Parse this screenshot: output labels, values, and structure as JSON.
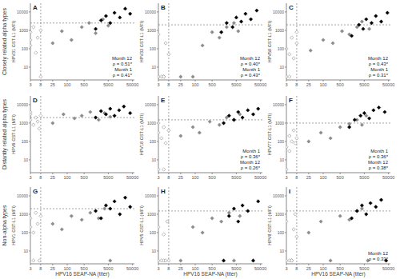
{
  "row_labels": [
    "Closely related alpha types",
    "Distantly related alpha types",
    "Non-alpha types"
  ],
  "chart_data": [
    {
      "type": "scatter",
      "title": "A",
      "y_label": "HPV31 GST-L1 (MFI)",
      "log": true,
      "xlim": [
        3,
        60000
      ],
      "xticks": [
        3,
        8,
        25,
        100,
        500,
        5000,
        50000
      ],
      "ylim": [
        2,
        30000
      ],
      "yticks": [
        10,
        100,
        1000,
        10000
      ],
      "x_cutoff": 8,
      "y_cutoff": 2500,
      "annotations": [
        "Month 12",
        "ρ = 0.51*",
        "Month 1",
        "ρ = 0.41*"
      ],
      "series": [
        {
          "color": "#ffffff",
          "marker": "diamond-open",
          "x": [
            3,
            3,
            3,
            4,
            5,
            6,
            8,
            8
          ],
          "values": [
            300,
            800,
            150,
            1500,
            60,
            400,
            1000,
            3
          ]
        },
        {
          "color": "#8c8c8c",
          "marker": "diamond",
          "x": [
            25,
            60,
            150,
            400,
            800,
            1500,
            3000,
            5000
          ],
          "values": [
            200,
            900,
            300,
            1500,
            2500,
            700,
            4000,
            1800
          ]
        },
        {
          "color": "#000000",
          "marker": "diamond",
          "x": [
            1500,
            2500,
            4000,
            6000,
            9000,
            15000,
            25000,
            40000
          ],
          "values": [
            1200,
            3500,
            6000,
            2500,
            9000,
            5000,
            15000,
            8000
          ]
        }
      ]
    },
    {
      "type": "scatter",
      "title": "B",
      "y_label": "HPV33 GST-L1 (MFI)",
      "log": true,
      "xlim": [
        3,
        60000
      ],
      "xticks": [
        3,
        8,
        25,
        100,
        500,
        5000,
        50000
      ],
      "ylim": [
        2,
        30000
      ],
      "yticks": [
        10,
        100,
        1000,
        10000
      ],
      "x_cutoff": 8,
      "y_cutoff": 2000,
      "annotations": [
        "Month 12",
        "ρ = 0.40*",
        "Month 1",
        "ρ = 0.43*"
      ],
      "series": [
        {
          "color": "#ffffff",
          "marker": "diamond-open",
          "x": [
            3,
            3,
            4,
            5,
            6,
            8,
            3,
            5
          ],
          "values": [
            3,
            3,
            3,
            3,
            200,
            50,
            600,
            3
          ]
        },
        {
          "color": "#8c8c8c",
          "marker": "diamond",
          "x": [
            25,
            80,
            200,
            500,
            1000,
            2000,
            4000,
            6000
          ],
          "values": [
            3,
            3,
            150,
            800,
            400,
            1500,
            2500,
            900
          ]
        },
        {
          "color": "#000000",
          "marker": "diamond",
          "x": [
            1200,
            2000,
            3500,
            5000,
            8000,
            12000,
            20000,
            35000
          ],
          "values": [
            800,
            2500,
            1500,
            5000,
            3000,
            8000,
            4000,
            12000
          ]
        }
      ]
    },
    {
      "type": "scatter",
      "title": "C",
      "y_label": "HPV58 GST-L1 (MFI)",
      "log": true,
      "xlim": [
        3,
        60000
      ],
      "xticks": [
        3,
        8,
        25,
        100,
        500,
        5000,
        50000
      ],
      "ylim": [
        2,
        30000
      ],
      "yticks": [
        10,
        100,
        1000,
        10000
      ],
      "x_cutoff": 8,
      "y_cutoff": 2000,
      "annotations": [
        "Month 12",
        "ρ = 0.43*",
        "Month 1",
        "ρ = 0.31*"
      ],
      "series": [
        {
          "color": "#ffffff",
          "marker": "diamond-open",
          "x": [
            3,
            4,
            5,
            6,
            8,
            3,
            4,
            8
          ],
          "values": [
            100,
            50,
            400,
            30,
            200,
            3,
            3,
            800
          ]
        },
        {
          "color": "#8c8c8c",
          "marker": "diamond",
          "x": [
            30,
            100,
            250,
            600,
            1200,
            2500,
            4000,
            8000
          ],
          "values": [
            80,
            300,
            200,
            900,
            600,
            1500,
            3000,
            1200
          ]
        },
        {
          "color": "#000000",
          "marker": "diamond",
          "x": [
            1500,
            3000,
            4500,
            6000,
            10000,
            15000,
            25000,
            45000
          ],
          "values": [
            500,
            2000,
            1200,
            4000,
            2500,
            6000,
            3000,
            9000
          ]
        }
      ]
    },
    {
      "type": "scatter",
      "title": "D",
      "y_label": "HPV6 GST-L1 (MFI)",
      "log": true,
      "xlim": [
        3,
        60000
      ],
      "xticks": [
        3,
        8,
        25,
        100,
        500,
        5000,
        50000
      ],
      "ylim": [
        2,
        30000
      ],
      "yticks": [
        10,
        100,
        1000,
        10000
      ],
      "x_cutoff": 8,
      "y_cutoff": 2000,
      "annotations": [],
      "series": [
        {
          "color": "#ffffff",
          "marker": "diamond-open",
          "x": [
            3,
            3,
            4,
            5,
            6,
            7,
            8,
            3
          ],
          "values": [
            1500,
            3000,
            800,
            2000,
            1200,
            500,
            2500,
            4000
          ]
        },
        {
          "color": "#8c8c8c",
          "marker": "diamond",
          "x": [
            25,
            70,
            200,
            400,
            900,
            2000,
            3500,
            6000
          ],
          "values": [
            1000,
            3000,
            1800,
            2500,
            4000,
            1500,
            3500,
            2200
          ]
        },
        {
          "color": "#000000",
          "marker": "diamond",
          "x": [
            1500,
            2500,
            4000,
            6000,
            9000,
            14000,
            22000,
            40000
          ],
          "values": [
            2000,
            4500,
            3000,
            6000,
            2500,
            5000,
            8000,
            3500
          ]
        }
      ]
    },
    {
      "type": "scatter",
      "title": "E",
      "y_label": "HPV18 GST-L1 (MFI)",
      "log": true,
      "xlim": [
        3,
        60000
      ],
      "xticks": [
        3,
        8,
        25,
        100,
        500,
        5000,
        50000
      ],
      "ylim": [
        2,
        30000
      ],
      "yticks": [
        10,
        100,
        1000,
        10000
      ],
      "x_cutoff": 8,
      "y_cutoff": 1500,
      "annotations": [
        "Month 1",
        "ρ = 0.36*",
        "Month 12",
        "ρ = 0.26*"
      ],
      "series": [
        {
          "color": "#ffffff",
          "marker": "diamond-open",
          "x": [
            3,
            3,
            4,
            5,
            6,
            8,
            3,
            5
          ],
          "values": [
            300,
            1000,
            150,
            600,
            80,
            400,
            3,
            3
          ]
        },
        {
          "color": "#8c8c8c",
          "marker": "diamond",
          "x": [
            25,
            80,
            150,
            400,
            1000,
            2000,
            4000,
            7000
          ],
          "values": [
            200,
            600,
            300,
            1200,
            800,
            2000,
            1500,
            3000
          ]
        },
        {
          "color": "#000000",
          "marker": "diamond",
          "x": [
            1500,
            2500,
            4000,
            6000,
            9000,
            15000,
            25000,
            40000
          ],
          "values": [
            1000,
            2500,
            1500,
            4000,
            2000,
            5000,
            3000,
            6000
          ]
        }
      ]
    },
    {
      "type": "scatter",
      "title": "F",
      "y_label": "HPV77 GST-L1 (MFI)",
      "log": true,
      "xlim": [
        3,
        60000
      ],
      "xticks": [
        3,
        8,
        25,
        100,
        500,
        5000,
        50000
      ],
      "ylim": [
        2,
        30000
      ],
      "yticks": [
        10,
        100,
        1000,
        10000
      ],
      "x_cutoff": 8,
      "y_cutoff": 1000,
      "annotations": [
        "Month 1",
        "ρ = 0.36*",
        "Month 12",
        "ρ = 0.38*"
      ],
      "series": [
        {
          "color": "#ffffff",
          "marker": "diamond-open",
          "x": [
            3,
            4,
            5,
            6,
            8,
            3,
            4,
            7
          ],
          "values": [
            50,
            200,
            100,
            400,
            150,
            3,
            30,
            80
          ]
        },
        {
          "color": "#8c8c8c",
          "marker": "diamond",
          "x": [
            25,
            80,
            200,
            500,
            1200,
            2500,
            4000,
            6000
          ],
          "values": [
            100,
            300,
            150,
            600,
            900,
            1500,
            800,
            2500
          ]
        },
        {
          "color": "#000000",
          "marker": "diamond",
          "x": [
            1200,
            2000,
            3500,
            5000,
            8000,
            12000,
            20000,
            35000
          ],
          "values": [
            600,
            1500,
            2500,
            3500,
            1800,
            5000,
            7000,
            4000
          ]
        }
      ]
    },
    {
      "type": "scatter",
      "title": "G",
      "x_label": "HPV16 SEAP-NA (titer)",
      "y_label": "HPV1 GST-L1 (MFI)",
      "log": true,
      "xlim": [
        3,
        60000
      ],
      "xticks": [
        3,
        8,
        25,
        100,
        500,
        5000,
        50000
      ],
      "ylim": [
        2,
        30000
      ],
      "yticks": [
        10,
        100,
        1000,
        10000
      ],
      "x_cutoff": 8,
      "y_cutoff": 2000,
      "annotations": [],
      "series": [
        {
          "color": "#ffffff",
          "marker": "diamond-open",
          "x": [
            3,
            3,
            4,
            5,
            6,
            8,
            4,
            7
          ],
          "values": [
            200,
            600,
            100,
            1200,
            300,
            800,
            3,
            3
          ]
        },
        {
          "color": "#8c8c8c",
          "marker": "diamond",
          "x": [
            25,
            60,
            150,
            400,
            900,
            2000,
            3500,
            6000
          ],
          "values": [
            300,
            150,
            800,
            500,
            1200,
            600,
            2000,
            3
          ]
        },
        {
          "color": "#000000",
          "marker": "diamond",
          "x": [
            1500,
            2500,
            4000,
            6000,
            9000,
            15000,
            25000,
            40000
          ],
          "values": [
            1500,
            600,
            3000,
            2000,
            5000,
            1000,
            8000,
            2500
          ]
        }
      ]
    },
    {
      "type": "scatter",
      "title": "H",
      "x_label": "HPV16 SEAP-NA (titer)",
      "y_label": "HPV5 GST-L1 (MFI)",
      "log": true,
      "xlim": [
        3,
        60000
      ],
      "xticks": [
        3,
        8,
        25,
        100,
        500,
        5000,
        50000
      ],
      "ylim": [
        2,
        30000
      ],
      "yticks": [
        10,
        100,
        1000,
        10000
      ],
      "x_cutoff": 8,
      "y_cutoff": 1500,
      "annotations": [],
      "series": [
        {
          "color": "#ffffff",
          "marker": "diamond-open",
          "x": [
            3,
            4,
            5,
            6,
            8,
            3,
            5,
            7
          ],
          "values": [
            3,
            3,
            3,
            3,
            3,
            200,
            80,
            400
          ]
        },
        {
          "color": "#8c8c8c",
          "marker": "diamond",
          "x": [
            25,
            80,
            200,
            500,
            1200,
            2500,
            4000,
            7000
          ],
          "values": [
            3,
            200,
            100,
            600,
            400,
            1200,
            3,
            800
          ]
        },
        {
          "color": "#000000",
          "marker": "diamond",
          "x": [
            1500,
            2500,
            4000,
            6000,
            9000,
            15000,
            25000,
            40000
          ],
          "values": [
            3,
            800,
            2000,
            400,
            3000,
            1500,
            3,
            5000
          ]
        }
      ]
    },
    {
      "type": "scatter",
      "title": "I",
      "x_label": "HPV16 SEAP-NA (titer)",
      "y_label": "HPV8 GST-L1 (MFI)",
      "log": true,
      "xlim": [
        3,
        60000
      ],
      "xticks": [
        3,
        8,
        25,
        100,
        500,
        5000,
        50000
      ],
      "ylim": [
        2,
        30000
      ],
      "yticks": [
        10,
        100,
        1000,
        10000
      ],
      "x_cutoff": 8,
      "y_cutoff": 1500,
      "annotations": [
        "Month 12",
        "ρ = 0.33*"
      ],
      "series": [
        {
          "color": "#ffffff",
          "marker": "diamond-open",
          "x": [
            3,
            4,
            5,
            6,
            8,
            3,
            5,
            7
          ],
          "values": [
            3,
            3,
            3,
            150,
            60,
            400,
            3,
            1000
          ]
        },
        {
          "color": "#8c8c8c",
          "marker": "diamond",
          "x": [
            25,
            80,
            200,
            500,
            1200,
            2500,
            4000,
            7000
          ],
          "values": [
            100,
            400,
            3,
            800,
            500,
            1500,
            2000,
            3
          ]
        },
        {
          "color": "#000000",
          "marker": "diamond",
          "x": [
            1500,
            2500,
            4000,
            6000,
            9000,
            15000,
            25000,
            40000
          ],
          "values": [
            600,
            1500,
            3000,
            1000,
            4000,
            2500,
            6000,
            3
          ]
        }
      ]
    }
  ]
}
